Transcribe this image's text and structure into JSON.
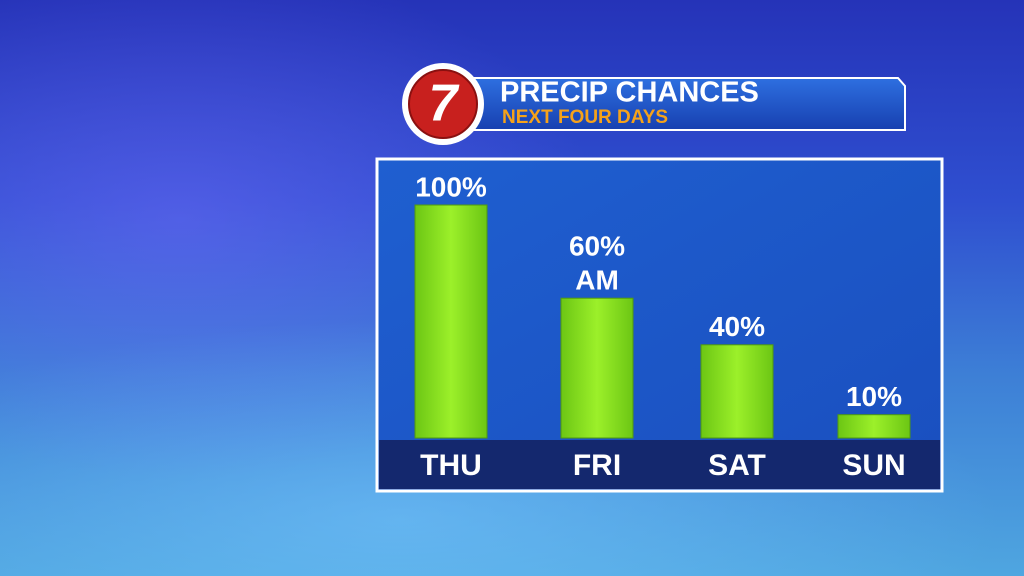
{
  "logo": "7",
  "chart_data": {
    "type": "bar",
    "title": "PRECIP CHANCES",
    "subtitle": "NEXT FOUR DAYS",
    "categories": [
      "THU",
      "FRI",
      "SAT",
      "SUN"
    ],
    "values": [
      100,
      60,
      40,
      10
    ],
    "value_labels": [
      "100%",
      "60%",
      "40%",
      "10%"
    ],
    "annotations": [
      "AM"
    ],
    "color": "#86dc1c"
  }
}
